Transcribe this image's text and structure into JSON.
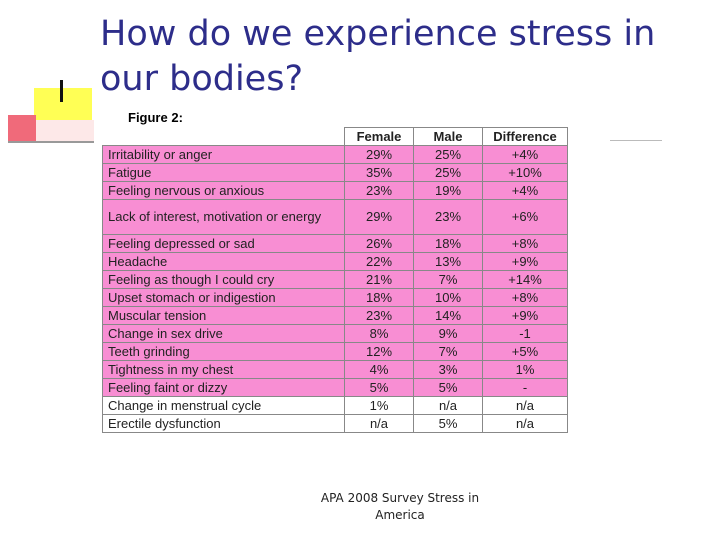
{
  "title": "How do we experience stress in our bodies?",
  "figure_label": "Figure 2:",
  "table": {
    "headers": [
      "",
      "Female",
      "Male",
      "Difference"
    ],
    "rows": [
      {
        "symptom": "Irritability or anger",
        "female": "29%",
        "male": "25%",
        "difference": "+4%"
      },
      {
        "symptom": "Fatigue",
        "female": "35%",
        "male": "25%",
        "difference": "+10%"
      },
      {
        "symptom": "Feeling nervous or anxious",
        "female": "23%",
        "male": "19%",
        "difference": "+4%"
      },
      {
        "symptom": "Lack of interest, motivation or energy",
        "female": "29%",
        "male": "23%",
        "difference": "+6%"
      },
      {
        "symptom": "Feeling depressed or sad",
        "female": "26%",
        "male": "18%",
        "difference": "+8%"
      },
      {
        "symptom": "Headache",
        "female": "22%",
        "male": "13%",
        "difference": "+9%"
      },
      {
        "symptom": "Feeling as though I could cry",
        "female": "21%",
        "male": "7%",
        "difference": "+14%"
      },
      {
        "symptom": "Upset stomach or indigestion",
        "female": "18%",
        "male": "10%",
        "difference": "+8%"
      },
      {
        "symptom": "Muscular tension",
        "female": "23%",
        "male": "14%",
        "difference": "+9%"
      },
      {
        "symptom": "Change in sex drive",
        "female": "8%",
        "male": "9%",
        "difference": "-1"
      },
      {
        "symptom": "Teeth grinding",
        "female": "12%",
        "male": "7%",
        "difference": "+5%"
      },
      {
        "symptom": "Tightness in my chest",
        "female": "4%",
        "male": "3%",
        "difference": "1%"
      },
      {
        "symptom": "Feeling faint or dizzy",
        "female": "5%",
        "male": "5%",
        "difference": "-"
      },
      {
        "symptom": "Change in menstrual cycle",
        "female": "1%",
        "male": "n/a",
        "difference": "n/a"
      },
      {
        "symptom": "Erectile dysfunction",
        "female": "n/a",
        "male": "5%",
        "difference": "n/a"
      }
    ]
  },
  "source_line1": "APA 2008 Survey Stress in",
  "source_line2": "America",
  "colors": {
    "title": "#2d2d8a",
    "row_pink": "#f88ed3",
    "accent_yellow": "#ffff55",
    "accent_pink": "#f06a7a"
  }
}
